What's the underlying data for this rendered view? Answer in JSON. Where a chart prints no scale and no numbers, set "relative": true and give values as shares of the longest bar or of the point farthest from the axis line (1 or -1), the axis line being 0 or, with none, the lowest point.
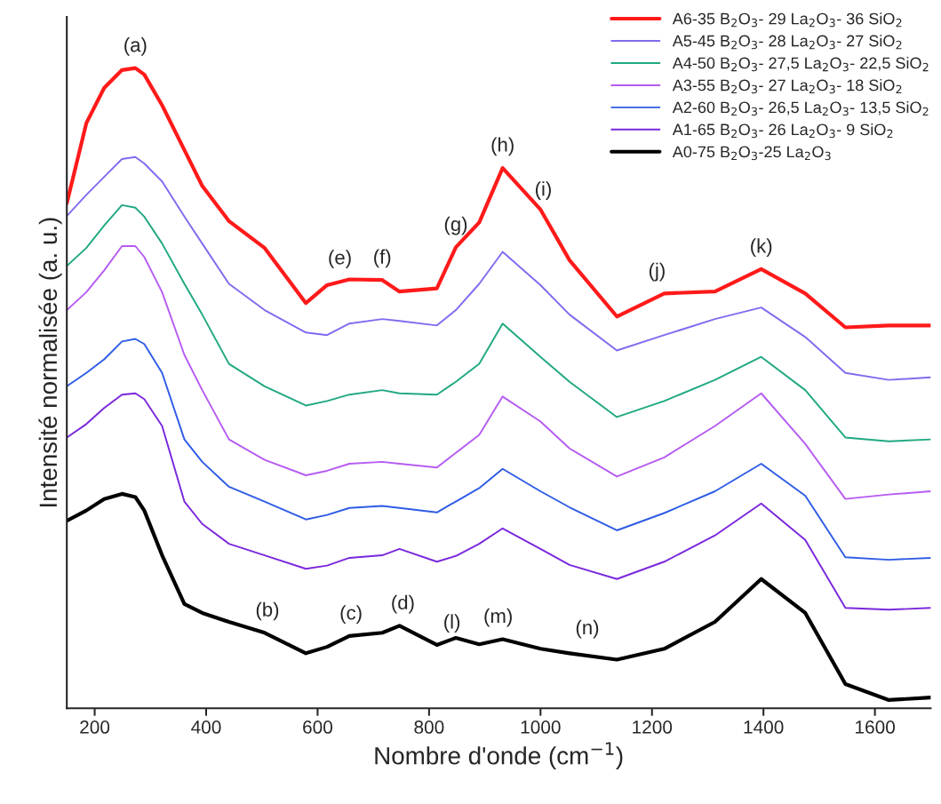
{
  "chart_data": {
    "type": "line",
    "relative": true,
    "xlabel": "Nombre d'onde (cm$^{−1}$)",
    "ylabel": "Intensité normalisée (a. u.)",
    "x": [
      150,
      185,
      217,
      249,
      273,
      289,
      321,
      361,
      393,
      441,
      505,
      579,
      617,
      657,
      716,
      747,
      814,
      848,
      890,
      932,
      1000,
      1052,
      1137,
      1222,
      1313,
      1396,
      1475,
      1547,
      1625,
      1700
    ],
    "xlim": [
      150,
      1700
    ],
    "xticks": [
      200,
      400,
      600,
      800,
      1000,
      1200,
      1400,
      1600
    ],
    "series": [
      {
        "name": "A6-35 B$_{2}$O$_{3}$- 29 La$_{2}$O$_{3}$- 36 SiO$_{2}$",
        "color": "#ff1a1a",
        "values": [
          0.789,
          0.914,
          0.969,
          0.997,
          1.0,
          0.99,
          0.942,
          0.872,
          0.816,
          0.761,
          0.719,
          0.633,
          0.661,
          0.67,
          0.669,
          0.651,
          0.656,
          0.72,
          0.759,
          0.844,
          0.779,
          0.7,
          0.612,
          0.648,
          0.651,
          0.686,
          0.648,
          0.595,
          0.598,
          0.598
        ]
      },
      {
        "name": "A5-45 B$_{2}$O$_{3}$- 28 La$_{2}$O$_{3}$- 27 SiO$_{2}$",
        "color": "#7f6cf0",
        "values": [
          0.769,
          0.802,
          0.83,
          0.858,
          0.861,
          0.851,
          0.823,
          0.768,
          0.726,
          0.663,
          0.622,
          0.587,
          0.583,
          0.601,
          0.608,
          0.605,
          0.598,
          0.622,
          0.663,
          0.713,
          0.661,
          0.615,
          0.559,
          0.583,
          0.608,
          0.626,
          0.58,
          0.524,
          0.513,
          0.517
        ]
      },
      {
        "name": "A4-50 B$_{2}$O$_{3}$- 27,5 La$_{2}$O$_{3}$- 22,5 SiO$_{2}$",
        "color": "#20a882",
        "values": [
          0.691,
          0.719,
          0.754,
          0.786,
          0.782,
          0.768,
          0.726,
          0.663,
          0.615,
          0.538,
          0.503,
          0.473,
          0.48,
          0.49,
          0.497,
          0.492,
          0.49,
          0.51,
          0.538,
          0.601,
          0.549,
          0.51,
          0.455,
          0.48,
          0.513,
          0.549,
          0.497,
          0.423,
          0.417,
          0.42
        ]
      },
      {
        "name": "A3-55 B$_{2}$O$_{3}$- 27 La$_{2}$O$_{3}$- 18 SiO$_{2}$",
        "color": "#b65cf2",
        "values": [
          0.622,
          0.65,
          0.684,
          0.722,
          0.722,
          0.705,
          0.65,
          0.552,
          0.497,
          0.42,
          0.388,
          0.364,
          0.371,
          0.382,
          0.385,
          0.382,
          0.376,
          0.399,
          0.427,
          0.487,
          0.448,
          0.406,
          0.362,
          0.392,
          0.441,
          0.492,
          0.413,
          0.327,
          0.334,
          0.339
        ]
      },
      {
        "name": "A2-60 B$_{2}$O$_{3}$- 26,5 La$_{2}$O$_{3}$- 13,5 SiO$_{2}$",
        "color": "#2f5ce6",
        "values": [
          0.503,
          0.524,
          0.545,
          0.573,
          0.577,
          0.569,
          0.524,
          0.42,
          0.385,
          0.346,
          0.323,
          0.295,
          0.302,
          0.313,
          0.316,
          0.313,
          0.306,
          0.323,
          0.344,
          0.374,
          0.339,
          0.314,
          0.278,
          0.305,
          0.339,
          0.382,
          0.332,
          0.236,
          0.232,
          0.235
        ]
      },
      {
        "name": "A1-65 B$_{2}$O$_{3}$- 26 La$_{2}$O$_{3}$- 9 SiO$_{2}$",
        "color": "#7a28dc",
        "values": [
          0.423,
          0.444,
          0.469,
          0.49,
          0.492,
          0.483,
          0.441,
          0.323,
          0.288,
          0.257,
          0.239,
          0.218,
          0.223,
          0.235,
          0.239,
          0.249,
          0.229,
          0.238,
          0.257,
          0.281,
          0.249,
          0.224,
          0.202,
          0.229,
          0.27,
          0.32,
          0.263,
          0.157,
          0.154,
          0.157
        ]
      },
      {
        "name": "A0-75 B$_{2}$O$_{3}$-25 La$_{2}$O$_{3}$",
        "color": "#000000",
        "values": [
          0.293,
          0.309,
          0.327,
          0.335,
          0.33,
          0.309,
          0.239,
          0.163,
          0.149,
          0.135,
          0.118,
          0.086,
          0.096,
          0.113,
          0.118,
          0.129,
          0.099,
          0.11,
          0.1,
          0.108,
          0.093,
          0.086,
          0.076,
          0.093,
          0.135,
          0.202,
          0.149,
          0.038,
          0.013,
          0.017
        ]
      }
    ],
    "annotations": [
      {
        "text": "(a)",
        "x": 273,
        "y": 1.0
      },
      {
        "text": "(e)",
        "x": 640,
        "y": 0.668
      },
      {
        "text": "(f)",
        "x": 716,
        "y": 0.669
      },
      {
        "text": "(g)",
        "x": 848,
        "y": 0.72
      },
      {
        "text": "(h)",
        "x": 932,
        "y": 0.844
      },
      {
        "text": "(i)",
        "x": 1005,
        "y": 0.775
      },
      {
        "text": "(j)",
        "x": 1209,
        "y": 0.648
      },
      {
        "text": "(k)",
        "x": 1396,
        "y": 0.686
      },
      {
        "text": "(b)",
        "x": 510,
        "y": 0.118
      },
      {
        "text": "(c)",
        "x": 660,
        "y": 0.113
      },
      {
        "text": "(d)",
        "x": 753,
        "y": 0.129
      },
      {
        "text": "(l)",
        "x": 841,
        "y": 0.099
      },
      {
        "text": "(m)",
        "x": 924,
        "y": 0.108
      },
      {
        "text": "(n)",
        "x": 1084,
        "y": 0.09
      }
    ],
    "legend": "top right",
    "grid": false,
    "marker": "none",
    "line_style": "solid"
  }
}
